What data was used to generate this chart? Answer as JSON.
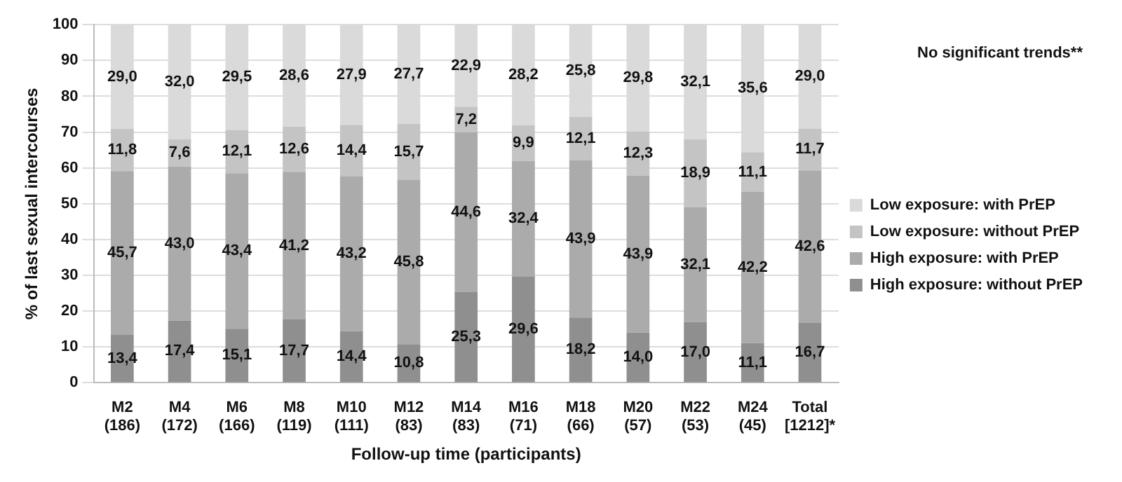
{
  "chart_data": {
    "type": "bar",
    "stacked": true,
    "ylabel": "% of last sexual intercourses",
    "xlabel": "Follow-up time (participants)",
    "categories": [
      "M2 (186)",
      "M4 (172)",
      "M6 (166)",
      "M8 (119)",
      "M10 (111)",
      "M12 (83)",
      "M14 (83)",
      "M16 (71)",
      "M18 (66)",
      "M20 (57)",
      "M22 (53)",
      "M24 (45)",
      "Total [1212]*"
    ],
    "series": [
      {
        "name": "High exposure: without PrEP",
        "color": "#8f8f8f",
        "values": [
          13.4,
          17.4,
          15.1,
          17.7,
          14.4,
          10.8,
          25.3,
          29.6,
          18.2,
          14.0,
          17.0,
          11.1,
          16.7
        ],
        "value_labels": [
          "13,4",
          "17,4",
          "15,1",
          "17,7",
          "14,4",
          "10,8",
          "25,3",
          "29,6",
          "18,2",
          "14,0",
          "17,0",
          "11,1",
          "16,7"
        ]
      },
      {
        "name": "High exposure: with PrEP",
        "color": "#ababab",
        "values": [
          45.7,
          43.0,
          43.4,
          41.2,
          43.2,
          45.8,
          44.6,
          32.4,
          43.9,
          43.9,
          32.1,
          42.2,
          42.6
        ],
        "value_labels": [
          "45,7",
          "43,0",
          "43,4",
          "41,2",
          "43,2",
          "45,8",
          "44,6",
          "32,4",
          "43,9",
          "43,9",
          "32,1",
          "42,2",
          "42,6"
        ]
      },
      {
        "name": "Low exposure: without PrEP",
        "color": "#c4c4c4",
        "values": [
          11.8,
          7.6,
          12.1,
          12.6,
          14.4,
          15.7,
          7.2,
          9.9,
          12.1,
          12.3,
          18.9,
          11.1,
          11.7
        ],
        "value_labels": [
          "11,8",
          "7,6",
          "12,1",
          "12,6",
          "14,4",
          "15,7",
          "7,2",
          "9,9",
          "12,1",
          "12,3",
          "18,9",
          "11,1",
          "11,7"
        ]
      },
      {
        "name": "Low exposure: with PrEP",
        "color": "#dadada",
        "values": [
          29.0,
          32.0,
          29.5,
          28.6,
          27.9,
          27.7,
          22.9,
          28.2,
          25.8,
          29.8,
          32.1,
          35.6,
          29.0
        ],
        "value_labels": [
          "29,0",
          "32,0",
          "29,5",
          "28,6",
          "27,9",
          "27,7",
          "22,9",
          "28,2",
          "25,8",
          "29,8",
          "32,1",
          "35,6",
          "29,0"
        ]
      }
    ],
    "ylim": [
      0,
      100
    ],
    "yticks": [
      0,
      10,
      20,
      30,
      40,
      50,
      60,
      70,
      80,
      90,
      100
    ],
    "grid": "y",
    "legend": "right",
    "annotations": [
      "No significant trends**"
    ]
  }
}
